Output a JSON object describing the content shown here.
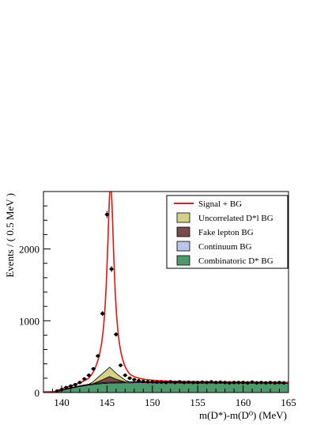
{
  "chart_data": {
    "type": "line",
    "title": "",
    "xlabel": "m(D*)-m(D⁰) (MeV)",
    "ylabel": "Events / ( 0.5 MeV )",
    "xlim": [
      138,
      165
    ],
    "ylim": [
      0,
      2800
    ],
    "x_ticks": [
      140,
      145,
      150,
      155,
      160,
      165
    ],
    "x_tick_labels": [
      "140",
      "145",
      "150",
      "155",
      "160",
      "165"
    ],
    "y_ticks": [
      0,
      1000,
      2000
    ],
    "y_tick_labels": [
      "0",
      "1000",
      "2000"
    ],
    "legend_position": "top-right",
    "legend": [
      {
        "label": "Signal + BG",
        "kind": "line",
        "color": "#e8130c"
      },
      {
        "label": "Uncorrelated D*l BG",
        "kind": "fill",
        "color": "#d5d189"
      },
      {
        "label": "Fake lepton BG",
        "kind": "fill",
        "color": "#7a4b4b"
      },
      {
        "label": "Continuum BG",
        "kind": "fill",
        "color": "#b8c5e6"
      },
      {
        "label": "Combinatoric D* BG",
        "kind": "fill",
        "color": "#4f9a6c"
      }
    ],
    "signal_peak": {
      "center": 145.4,
      "height": 2560,
      "width_gamma": 0.45
    },
    "combinatoric_bg": {
      "x": [
        139.2,
        140,
        141,
        142,
        143,
        144,
        145,
        146,
        147,
        148,
        149,
        150,
        152,
        155,
        158,
        160,
        162,
        165
      ],
      "y": [
        0,
        30,
        60,
        85,
        105,
        120,
        130,
        134,
        135,
        136,
        136,
        136,
        135,
        134,
        133,
        132,
        131,
        130
      ]
    },
    "continuum_bg": {
      "x": [
        139.2,
        140,
        142,
        144,
        145,
        146,
        148,
        150,
        155,
        160,
        165
      ],
      "y": [
        0,
        4,
        9,
        12,
        12,
        12,
        12,
        12,
        12,
        12,
        12
      ]
    },
    "fake_lepton_bg": {
      "x": [
        143.5,
        144.5,
        145.3,
        146.0,
        147.0
      ],
      "y": [
        0,
        40,
        80,
        40,
        0
      ]
    },
    "uncorrelated_bg": {
      "x": [
        143.0,
        144.2,
        145.3,
        146.2,
        147.5
      ],
      "y": [
        0,
        70,
        130,
        70,
        0
      ]
    },
    "data_points": {
      "x": [
        139.5,
        140.0,
        140.5,
        141.0,
        141.5,
        142.0,
        142.5,
        143.0,
        143.5,
        144.0,
        144.5,
        145.0,
        145.5,
        146.0,
        146.5,
        147.0,
        147.5,
        148.0,
        148.5,
        149.0,
        149.5,
        150.0,
        150.5,
        151.0,
        151.5,
        152.0,
        152.5,
        153.0,
        153.5,
        154.0,
        154.5,
        155.0,
        155.5,
        156.0,
        156.5,
        157.0,
        157.5,
        158.0,
        158.5,
        159.0,
        159.5,
        160.0,
        160.5,
        161.0,
        161.5,
        162.0,
        162.5,
        163.0,
        163.5,
        164.0,
        164.5
      ],
      "y": [
        20,
        40,
        70,
        90,
        110,
        140,
        190,
        240,
        330,
        510,
        1100,
        2480,
        1720,
        810,
        380,
        240,
        200,
        180,
        165,
        155,
        150,
        150,
        145,
        145,
        140,
        150,
        140,
        150,
        140,
        145,
        140,
        140,
        145,
        140,
        150,
        140,
        145,
        140,
        135,
        140,
        140,
        140,
        135,
        145,
        135,
        140,
        135,
        140,
        135,
        140,
        135
      ]
    }
  }
}
